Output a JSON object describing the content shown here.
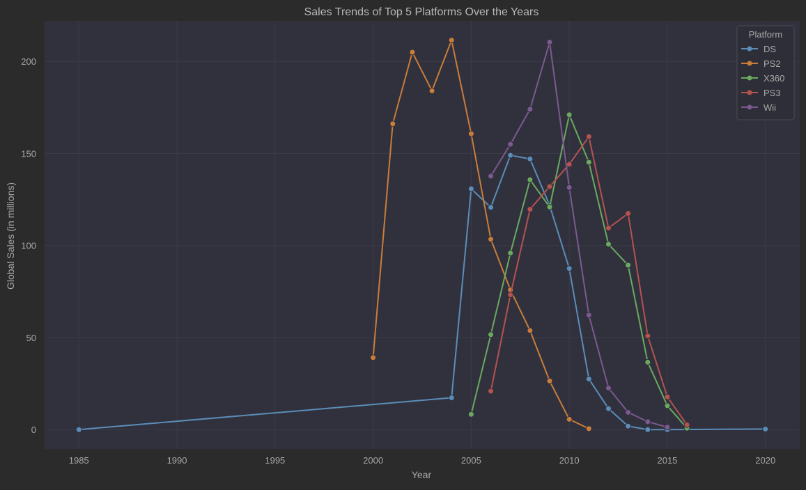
{
  "chart_data": {
    "type": "line",
    "title": "Sales Trends of Top 5 Platforms Over the Years",
    "xlabel": "Year",
    "ylabel": "Global Sales (in millions)",
    "xlim": [
      1983.25,
      2021.75
    ],
    "ylim": [
      -10.5,
      222.0
    ],
    "xticks": [
      1985,
      1990,
      1995,
      2000,
      2005,
      2010,
      2015,
      2020
    ],
    "yticks": [
      0,
      50,
      100,
      150,
      200
    ],
    "grid": true,
    "legend": {
      "title": "Platform",
      "position": "top-right"
    },
    "series": [
      {
        "name": "DS",
        "color": "#5b8db8",
        "points": [
          [
            1985,
            0.0
          ],
          [
            2004,
            17.3
          ],
          [
            2005,
            130.8
          ],
          [
            2006,
            120.7
          ],
          [
            2007,
            149.0
          ],
          [
            2008,
            147.0
          ],
          [
            2009,
            121.8
          ],
          [
            2010,
            87.5
          ],
          [
            2011,
            27.5
          ],
          [
            2012,
            11.4
          ],
          [
            2013,
            1.9
          ],
          [
            2014,
            0.0
          ],
          [
            2015,
            0.0
          ],
          [
            2020,
            0.3
          ]
        ]
      },
      {
        "name": "PS2",
        "color": "#c97d3a",
        "points": [
          [
            2000,
            39.1
          ],
          [
            2001,
            166.1
          ],
          [
            2002,
            205.0
          ],
          [
            2003,
            184.0
          ],
          [
            2004,
            211.5
          ],
          [
            2005,
            160.7
          ],
          [
            2006,
            103.4
          ],
          [
            2007,
            75.9
          ],
          [
            2008,
            53.8
          ],
          [
            2009,
            26.4
          ],
          [
            2010,
            5.6
          ],
          [
            2011,
            0.5
          ]
        ]
      },
      {
        "name": "X360",
        "color": "#6aaa5f",
        "points": [
          [
            2005,
            8.3
          ],
          [
            2006,
            51.6
          ],
          [
            2007,
            95.9
          ],
          [
            2008,
            135.7
          ],
          [
            2009,
            120.9
          ],
          [
            2010,
            171.0
          ],
          [
            2011,
            145.2
          ],
          [
            2012,
            100.7
          ],
          [
            2013,
            89.3
          ],
          [
            2014,
            36.6
          ],
          [
            2015,
            13.0
          ],
          [
            2016,
            0.8
          ]
        ]
      },
      {
        "name": "PS3",
        "color": "#b5534f",
        "points": [
          [
            2006,
            20.9
          ],
          [
            2007,
            73.2
          ],
          [
            2008,
            119.7
          ],
          [
            2009,
            132.0
          ],
          [
            2010,
            144.1
          ],
          [
            2011,
            159.1
          ],
          [
            2012,
            109.5
          ],
          [
            2013,
            117.4
          ],
          [
            2014,
            50.9
          ],
          [
            2015,
            17.8
          ],
          [
            2016,
            2.6
          ]
        ]
      },
      {
        "name": "Wii",
        "color": "#7b5a8f",
        "points": [
          [
            2006,
            137.7
          ],
          [
            2007,
            155.0
          ],
          [
            2008,
            174.0
          ],
          [
            2009,
            210.4
          ],
          [
            2010,
            131.5
          ],
          [
            2011,
            62.2
          ],
          [
            2012,
            22.6
          ],
          [
            2013,
            9.4
          ],
          [
            2014,
            4.3
          ],
          [
            2015,
            1.3
          ]
        ]
      }
    ]
  }
}
